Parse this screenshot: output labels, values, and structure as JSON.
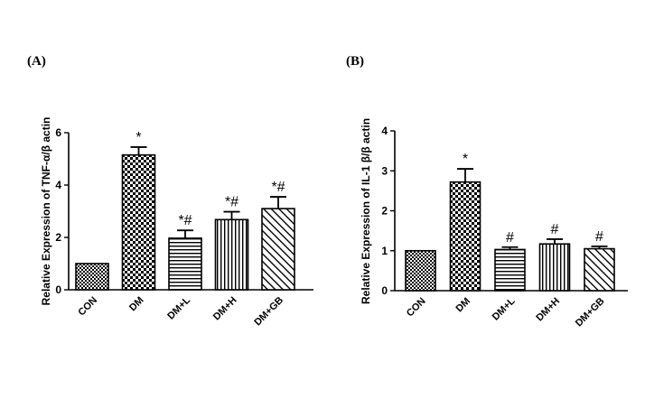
{
  "chart_data": [
    {
      "type": "bar",
      "panel": "(A)",
      "ylabel": "Relative Expression of TNF-α/β actin",
      "ylim": [
        0,
        6
      ],
      "yticks": [
        0,
        2,
        4,
        6
      ],
      "categories": [
        "CON",
        "DM",
        "DM+L",
        "DM+H",
        "DM+GB"
      ],
      "values": [
        1.0,
        5.15,
        1.97,
        2.68,
        3.1
      ],
      "errors": [
        0.0,
        0.3,
        0.3,
        0.3,
        0.45
      ],
      "annotations": [
        "",
        "*",
        "*#",
        "*#",
        "*#"
      ],
      "patterns": [
        "checker-small",
        "checker-large",
        "horizontal",
        "vertical",
        "diagonal"
      ]
    },
    {
      "type": "bar",
      "panel": "(B)",
      "ylabel": "Relative Expression of IL-1  β/β actin",
      "ylim": [
        0,
        4
      ],
      "yticks": [
        0,
        1,
        2,
        3,
        4
      ],
      "categories": [
        "CON",
        "DM",
        "DM+L",
        "DM+H",
        "DM+GB"
      ],
      "values": [
        1.0,
        2.72,
        1.03,
        1.17,
        1.05
      ],
      "errors": [
        0.0,
        0.33,
        0.06,
        0.12,
        0.06
      ],
      "annotations": [
        "",
        "*",
        "#",
        "#",
        "#"
      ],
      "patterns": [
        "checker-small",
        "checker-large",
        "horizontal",
        "vertical",
        "diagonal"
      ]
    }
  ]
}
